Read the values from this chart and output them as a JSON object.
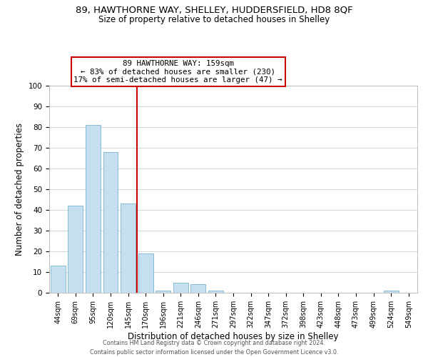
{
  "title": "89, HAWTHORNE WAY, SHELLEY, HUDDERSFIELD, HD8 8QF",
  "subtitle": "Size of property relative to detached houses in Shelley",
  "xlabel": "Distribution of detached houses by size in Shelley",
  "ylabel": "Number of detached properties",
  "bar_labels": [
    "44sqm",
    "69sqm",
    "95sqm",
    "120sqm",
    "145sqm",
    "170sqm",
    "196sqm",
    "221sqm",
    "246sqm",
    "271sqm",
    "297sqm",
    "322sqm",
    "347sqm",
    "372sqm",
    "398sqm",
    "423sqm",
    "448sqm",
    "473sqm",
    "499sqm",
    "524sqm",
    "549sqm"
  ],
  "bar_values": [
    13,
    42,
    81,
    68,
    43,
    19,
    1,
    5,
    4,
    1,
    0,
    0,
    0,
    0,
    0,
    0,
    0,
    0,
    0,
    1,
    0
  ],
  "bar_color": "#c6dff0",
  "bar_edge_color": "#7ab4d4",
  "vline_x": 4.5,
  "vline_color": "#cc0000",
  "annotation_line1": "89 HAWTHORNE WAY: 159sqm",
  "annotation_line2": "← 83% of detached houses are smaller (230)",
  "annotation_line3": "17% of semi-detached houses are larger (47) →",
  "footer_line1": "Contains HM Land Registry data © Crown copyright and database right 2024.",
  "footer_line2": "Contains public sector information licensed under the Open Government Licence v3.0.",
  "ylim": [
    0,
    100
  ],
  "title_fontsize": 9.5,
  "subtitle_fontsize": 8.5,
  "background_color": "#ffffff",
  "grid_color": "#d0d8e0"
}
